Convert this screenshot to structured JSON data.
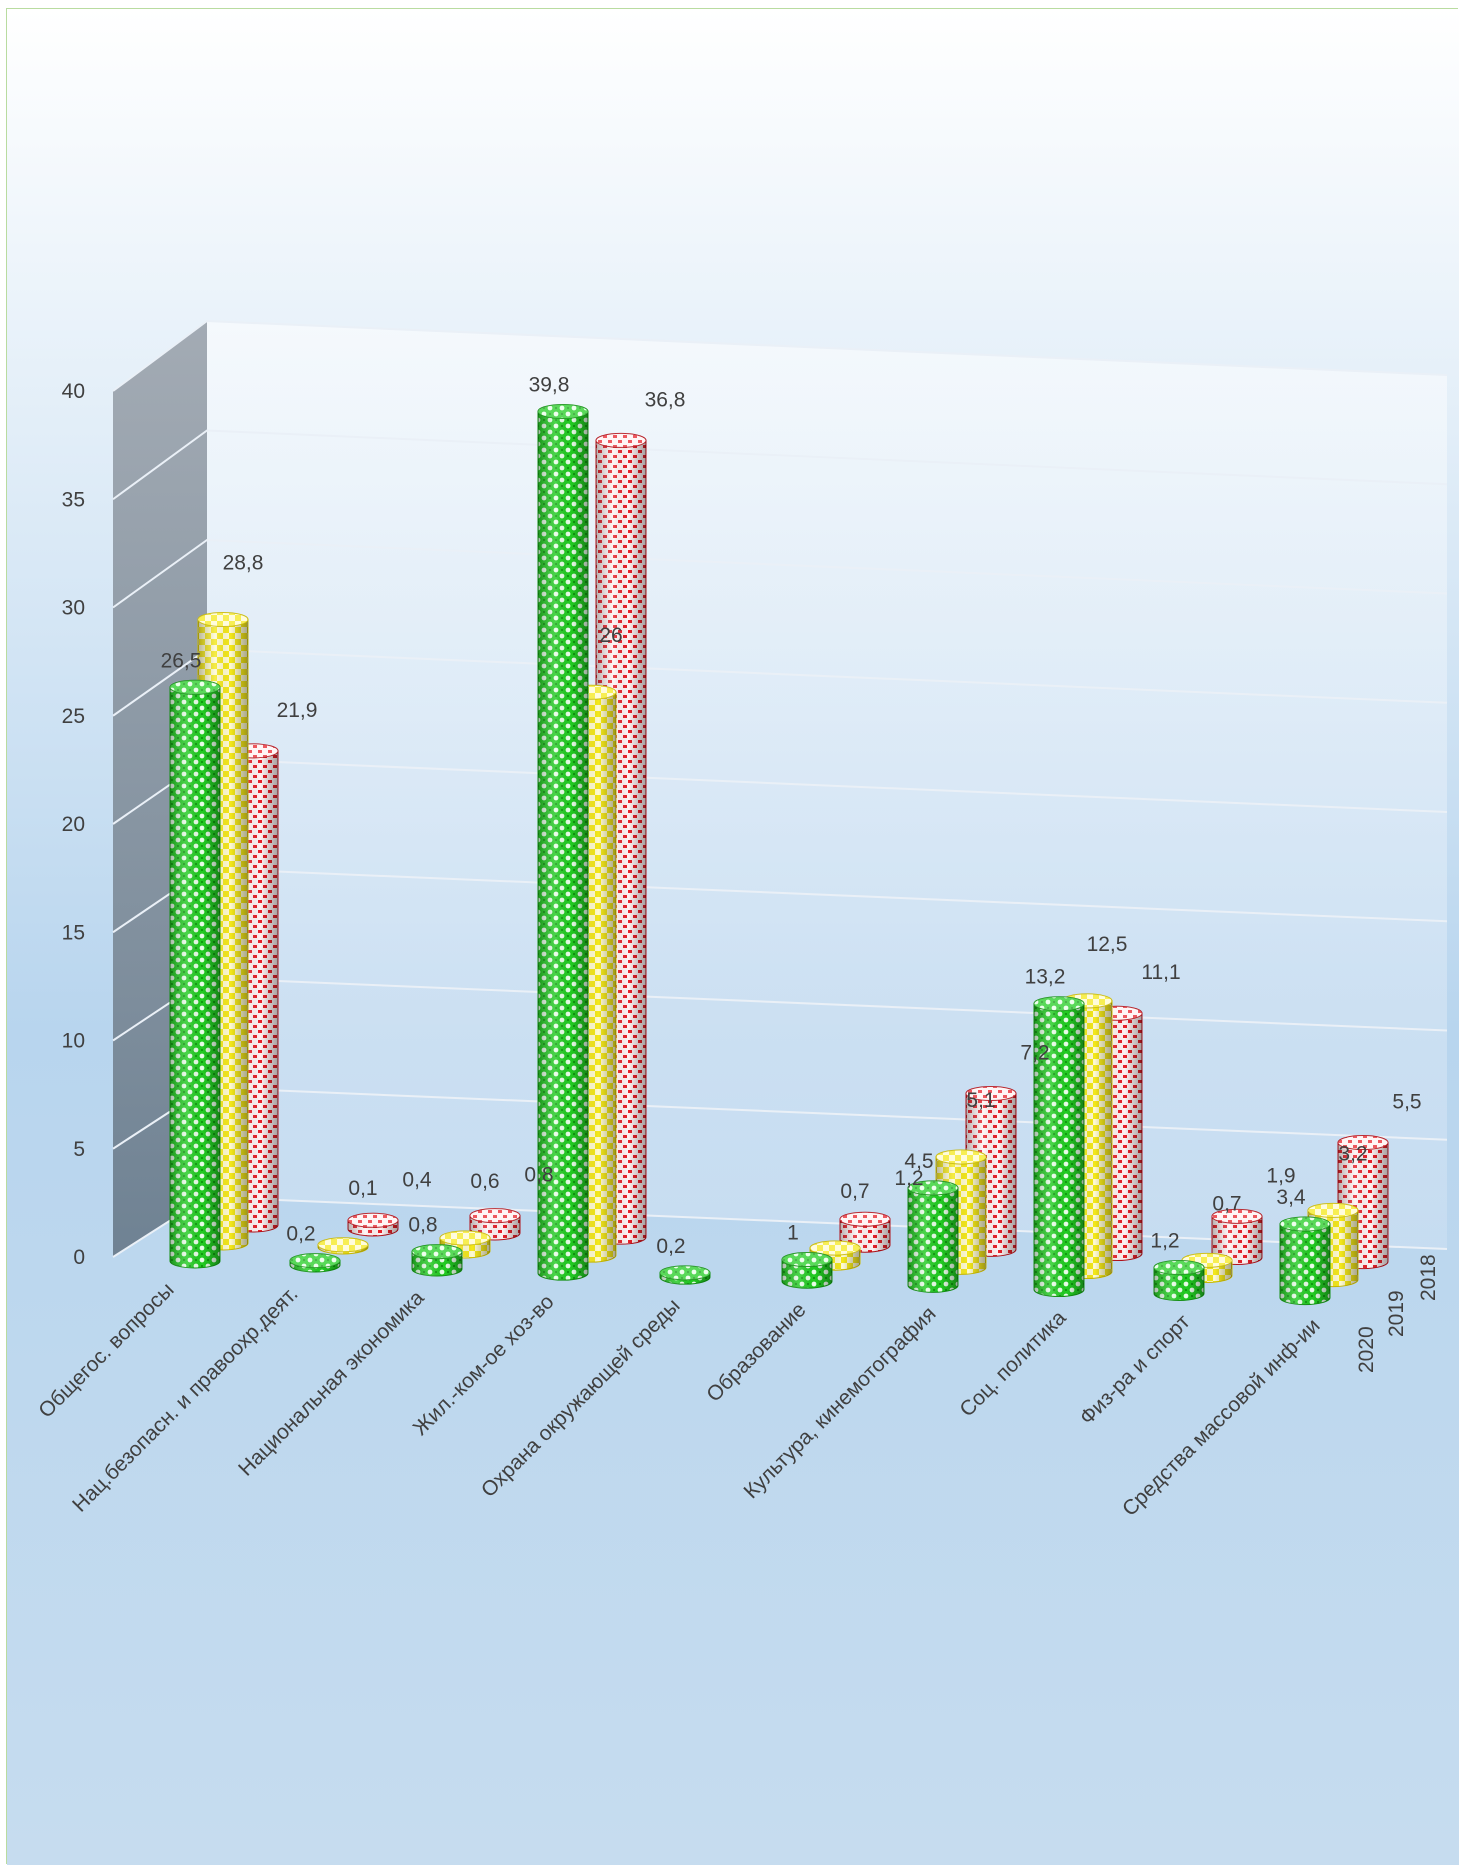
{
  "colors": {
    "bg_top": "#ffffff",
    "bg_bottom": "#b8d5ee",
    "wall_side_top": "#9aa3ad",
    "wall_side_bottom": "#6f8293",
    "gridline": "#e8eef5",
    "label": "#404040"
  },
  "chart_data": {
    "type": "bar",
    "style": "3d-cylinder-clustered-depth",
    "title": "",
    "xlabel": "",
    "ylabel": "",
    "ylim": [
      0,
      40
    ],
    "yticks": [
      "0",
      "5",
      "10",
      "15",
      "20",
      "25",
      "30",
      "35",
      "40"
    ],
    "grid": true,
    "categories": [
      "Общегос. вопросы",
      "Нац.безопасн. и правоохр.деят.",
      "Национальная экономика",
      "Жил.-ком-ое хоз-во",
      "Охрана окружающей среды",
      "Образование",
      "Культура, кинемотография",
      "Соц. политика",
      "Физ-ра и спорт",
      "Средства массовой инф-ии"
    ],
    "series": [
      {
        "name": "2020",
        "color": "#22cc22",
        "values": [
          26.5,
          0.2,
          0.8,
          39.8,
          0.2,
          1,
          4.5,
          13.2,
          1.2,
          3.4
        ],
        "labels": [
          "26,5",
          "0,2",
          "0,8",
          "39,8",
          "0,2",
          "1",
          "4,5",
          "13,2",
          "1,2",
          "3,4"
        ]
      },
      {
        "name": "2019",
        "color": "#f4e81a",
        "values": [
          28.8,
          0.1,
          0.6,
          26,
          null,
          0.7,
          5.1,
          12.5,
          0.7,
          3.2
        ],
        "labels": [
          "28,8",
          "0,1",
          "0,6",
          "26",
          "",
          "0,7",
          "5,1",
          "12,5",
          "0,7",
          "3,2"
        ]
      },
      {
        "name": "2018",
        "color": "#e8202a",
        "values": [
          21.9,
          0.4,
          0.8,
          36.8,
          null,
          1.2,
          7.2,
          11.1,
          1.9,
          5.5
        ],
        "labels": [
          "21,9",
          "0,4",
          "0,8",
          "36,8",
          "",
          "1,2",
          "7,2",
          "11,1",
          "1,9",
          "5,5"
        ]
      }
    ]
  }
}
